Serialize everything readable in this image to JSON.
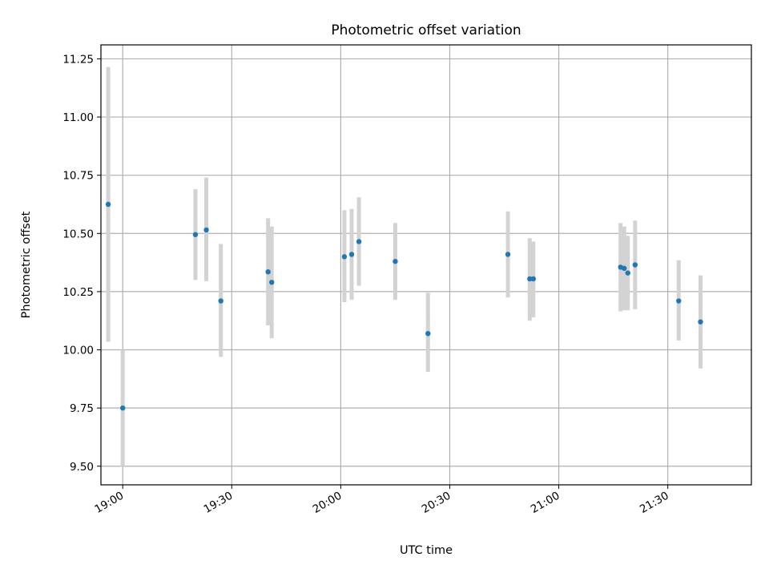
{
  "chart_data": {
    "type": "scatter",
    "title": "Photometric offset variation",
    "xlabel": "UTC time",
    "ylabel": "Photometric offset",
    "x_unit": "UTC time (HH:MM)",
    "xlim": [
      "18:54",
      "21:53"
    ],
    "ylim": [
      9.42,
      11.31
    ],
    "x_ticks": [
      "19:00",
      "19:30",
      "20:00",
      "20:30",
      "21:00",
      "21:30"
    ],
    "y_ticks": [
      "9.50",
      "9.75",
      "10.00",
      "10.25",
      "10.50",
      "10.75",
      "11.00",
      "11.25"
    ],
    "grid": true,
    "colors": {
      "point": "#1f77b4",
      "errorbar": "#d3d3d3",
      "grid": "#b0b0b0"
    },
    "series": [
      {
        "points": [
          {
            "x": "18:56",
            "y": 10.625,
            "lo": 10.035,
            "hi": 11.215
          },
          {
            "x": "19:00",
            "y": 9.75,
            "lo": 9.5,
            "hi": 10.0
          },
          {
            "x": "19:20",
            "y": 10.495,
            "lo": 10.3,
            "hi": 10.69
          },
          {
            "x": "19:23",
            "y": 10.515,
            "lo": 10.295,
            "hi": 10.74
          },
          {
            "x": "19:27",
            "y": 10.21,
            "lo": 9.97,
            "hi": 10.455
          },
          {
            "x": "19:40",
            "y": 10.335,
            "lo": 10.105,
            "hi": 10.565
          },
          {
            "x": "19:41",
            "y": 10.29,
            "lo": 10.05,
            "hi": 10.53
          },
          {
            "x": "20:01",
            "y": 10.4,
            "lo": 10.205,
            "hi": 10.6
          },
          {
            "x": "20:03",
            "y": 10.41,
            "lo": 10.215,
            "hi": 10.605
          },
          {
            "x": "20:05",
            "y": 10.465,
            "lo": 10.275,
            "hi": 10.655
          },
          {
            "x": "20:15",
            "y": 10.38,
            "lo": 10.215,
            "hi": 10.545
          },
          {
            "x": "20:24",
            "y": 10.07,
            "lo": 9.905,
            "hi": 10.245
          },
          {
            "x": "20:46",
            "y": 10.41,
            "lo": 10.225,
            "hi": 10.595
          },
          {
            "x": "20:52",
            "y": 10.305,
            "lo": 10.125,
            "hi": 10.48
          },
          {
            "x": "20:53",
            "y": 10.305,
            "lo": 10.14,
            "hi": 10.465
          },
          {
            "x": "21:17",
            "y": 10.355,
            "lo": 10.165,
            "hi": 10.545
          },
          {
            "x": "21:18",
            "y": 10.35,
            "lo": 10.17,
            "hi": 10.53
          },
          {
            "x": "21:19",
            "y": 10.33,
            "lo": 10.17,
            "hi": 10.49
          },
          {
            "x": "21:21",
            "y": 10.365,
            "lo": 10.175,
            "hi": 10.555
          },
          {
            "x": "21:33",
            "y": 10.21,
            "lo": 10.04,
            "hi": 10.385
          },
          {
            "x": "21:39",
            "y": 10.12,
            "lo": 9.92,
            "hi": 10.32
          }
        ]
      }
    ]
  }
}
